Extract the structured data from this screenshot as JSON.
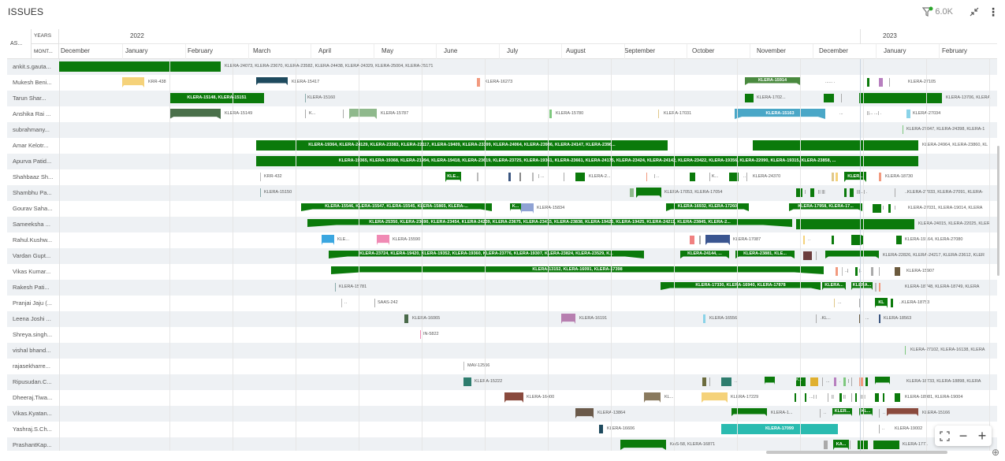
{
  "title": "ISSUES",
  "filter_count": "6.0K",
  "icons": {
    "filter": "filter-icon",
    "collapse": "collapse-icon",
    "menu": "kebab-menu-icon"
  },
  "header": {
    "assignee": "AS...",
    "years": "YEARS",
    "months": "MONT..."
  },
  "years": [
    {
      "label": "2022"
    },
    {
      "label": "2023"
    }
  ],
  "months": [
    "December",
    "January",
    "February",
    "March",
    "April",
    "May",
    "June",
    "July",
    "August",
    "September",
    "October",
    "November",
    "December",
    "January",
    "February"
  ],
  "colors": {
    "green": "#0b7a0b",
    "accent": "#2aa52a"
  },
  "assignees": [
    "ankit.s.gauta...",
    "Mukesh Beni...",
    "Tarun Shar...",
    "Anshika Rai ...",
    "subrahmany...",
    "Amar Kelotr...",
    "Apurva Patid...",
    "Shahbaaz Sh...",
    "Shambhu Pa...",
    "Gourav Saha...",
    "Sameeksha ...",
    "Rahul.Kushw...",
    "Vardan Gupt...",
    "Vikas Kumar...",
    "Rakesh Pati...",
    "Pranjai Jaju (...",
    "Leena Joshi ...",
    "Shreya.singh...",
    "vishal bhand...",
    "rajasekharre...",
    "Ripusudan.C...",
    "Dheeraj.Tiwa...",
    "Vikas.Kyatan...",
    "Yashraj.S.Ch...",
    "PrashantKap..."
  ],
  "texts": {
    "r0": "KLERA-24073, KLERA-23670, KLERA-23582, KLERA-24438, KLERA-24329, KLERA-25004, KLERA-25171",
    "r1a": "KRR-438",
    "r1b": "KLERA-15417",
    "r1c": "KLERA-16273",
    "r1d": "KLERA-15914",
    "r1e": "KLERA-27105",
    "r2a": "KLERA-15148, KLERA-15151",
    "r2b": "KLERA-15160",
    "r2c": "KLERA-1702...",
    "r2d": "KLERA-13706, KLERA",
    "r3a": "KLERA-15149",
    "r3b": "K...",
    "r3c": "KLERA-15787",
    "r3d": "KLERA-15780",
    "r3e": "KLERA-17031",
    "r3f": "KLERA-15163",
    "r3g": "KLERA-27034",
    "r4": "KLERA-27047, KLERA-24398, KLERA-1",
    "r5a": "KLERA-19364, KLERA-24129, KLERA-23383, KLERA-22117, KLERA-19409, KLERA-23399, KLERA-24064, KLERA-23936, KLERA-24147, KLERA-2398...",
    "r5b": "KLERA-24964, KLERA-23860, KL",
    "r6": "KLERA-19365, KLERA-19368, KLERA-21994, KLERA-19418, KLERA-23619, KLERA-23725, KLERA-19361, KLERA-23661, KLERA-24175, KLERA-23424, KLERA-24142, KLERA-23422, KLERA-19356, KLERA-22090, KLERA-19315, KLERA-23858, ...",
    "r7a": "KRR-432",
    "r7b": "KLE...",
    "r7c": "KLERA-2...",
    "r7d": "K...",
    "r7e": "KLERA-24370",
    "r7f": "KLER...",
    "r7g": "KLERA-18730",
    "r8a": "KLERA-15150",
    "r8b": "KLERA-17053, KLERA-17054",
    "r8c": "..KLERA-27033, KLERA-27091, KLERA-",
    "r9a": "KLERA-15546, KLERA-15547, KLERA-15545, KLERA-15865, KLERA-...",
    "r9b": "K...",
    "r9c": "KLERA-15834",
    "r9d": "KLERA-16932, KLERA-17260",
    "r9e": "KLERA-17958, KLERA-17...",
    "r9f": "KLERA-27031, KLERA-19014, KLERA",
    "r10a": "KLERA-25350, KLERA-23690, KLERA-23454, KLERA-24239, KLERA-23675, KLERA-23415, KLERA-23838, KLERA-19426, KLERA-19425, KLERA-24211, KLERA-23845, KLERA-2...",
    "r10b": "KLERA-24015, KLERA-22025, KLER",
    "r11a": "KLE...",
    "r11b": "KLERA-15590",
    "r11c": "KLERA-17087",
    "r11d": "KLERA-19164, KLERA-27080",
    "r12a": "KLERA-23724, KLERA-19420, KLERA-19352, KLERA-19360, KLERA-23776, KLERA-19307, KLERA-23824, KLERA-23529, K...",
    "r12b": "KLERA-24144, ...",
    "r12c": "KLERA-23881, KLE...",
    "r12d": "KLERA-22826, KLERA-24217, KLERA-23612, KLER",
    "r13a": "KLERA-13152, KLERA-16091, KLERA-17398",
    "r13b": "KLERA-15907",
    "r14a": "KLERA-15781",
    "r14b": "KLERA-17330, KLERA-16940, KLERA-17878",
    "r14c": "KLERA...",
    "r14d": "KLERA...",
    "r14e": "KLERA-18748, KLERA-18749, KLERA",
    "r15a": "SAAS-242",
    "r15b": "KL",
    "r15c": "..KLERA-18753",
    "r16a": "KLERA-16065",
    "r16b": "KLERA-16191",
    "r16c": "KLERA-16556",
    "r16d": ".KL...",
    "r16e": "KLERA-18563",
    "r17": "IN-5822",
    "r18": "KLERA-27102, KLERA-16138, KLERA",
    "r19": "MAV-12556",
    "r20a": "KLERA-15222",
    "r20b": "K...",
    "r20c": "KLERA-18733, KLERA-18898, KLERA",
    "r21a": "KLERA-16400",
    "r21b": "KL...",
    "r21c": "KLERA-17229",
    "r21d": "KLERA-18981, KLERA-19004",
    "r22a": "KLERA-13864",
    "r22b": "KLERA-1...",
    "r22c": "KLER...",
    "r22d": "KL...",
    "r22e": "KLERA-15166",
    "r23a": "KLERA-16606",
    "r23b": "KLERA-17099",
    "r23c": "KLERA-19002",
    "r24a": "KAS-58, KLERA-16871",
    "r24b": "KA...",
    "r24c": "KLERA-1771"
  }
}
